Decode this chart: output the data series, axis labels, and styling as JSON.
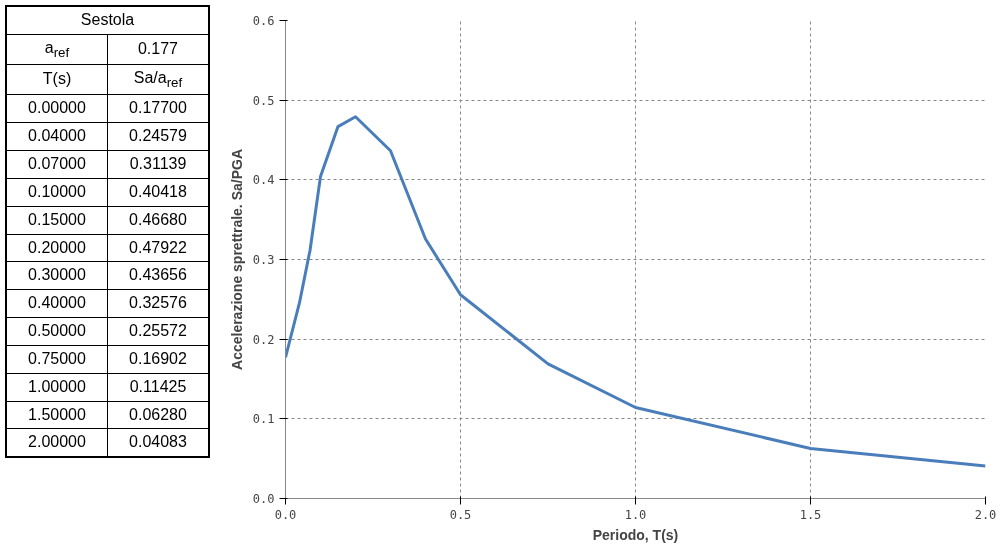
{
  "chart_data": [
    {
      "type": "other",
      "title": "Sestola",
      "annotations": [
        "a$_{ref}$",
        "0.177",
        "T(s)",
        "Sa/a$_{ref}$",
        "0.00000",
        "0.17700",
        "0.04000",
        "0.24579",
        "0.07000",
        "0.31139",
        "0.10000",
        "0.40418",
        "0.15000",
        "0.46680",
        "0.20000",
        "0.47922",
        "0.30000",
        "0.43656",
        "0.40000",
        "0.32576",
        "0.50000",
        "0.25572",
        "0.75000",
        "0.16902",
        "1.00000",
        "0.11425",
        "1.50000",
        "0.06280",
        "2.00000",
        "0.04083"
      ]
    },
    {
      "type": "line",
      "xlabel": "Periodo, T(s)",
      "ylabel": "Accelerazione sprettrale. Sa/PGA",
      "x": [
        0,
        0.04,
        0.07,
        0.1,
        0.15,
        0.2,
        0.3,
        0.4,
        0.5,
        0.75,
        1,
        1.5,
        2
      ],
      "series": [
        {
          "color": "#4a7ebb",
          "values": [
            0.177,
            0.24579,
            0.31139,
            0.40418,
            0.4668,
            0.47922,
            0.43656,
            0.32576,
            0.25572,
            0.16902,
            0.11425,
            0.0628,
            0.04083
          ]
        }
      ],
      "xlim": [
        0,
        2
      ],
      "xticks": [
        {
          "value": 0,
          "label": "0.0"
        },
        {
          "value": 0.5,
          "label": "0.5"
        },
        {
          "value": 1,
          "label": "1.0"
        },
        {
          "value": 1.5,
          "label": "1.5"
        },
        {
          "value": 2,
          "label": "2.0"
        }
      ],
      "ylim": [
        0,
        0.6
      ],
      "yticks": [
        {
          "value": 0,
          "label": "0.0"
        },
        {
          "value": 0.1,
          "label": "0.1"
        },
        {
          "value": 0.2,
          "label": "0.2"
        },
        {
          "value": 0.3,
          "label": "0.3"
        },
        {
          "value": 0.4,
          "label": "0.4"
        },
        {
          "value": 0.5,
          "label": "0.5"
        },
        {
          "value": 0.6,
          "label": "0.6"
        }
      ],
      "grid": true,
      "line_style": "solid"
    }
  ]
}
